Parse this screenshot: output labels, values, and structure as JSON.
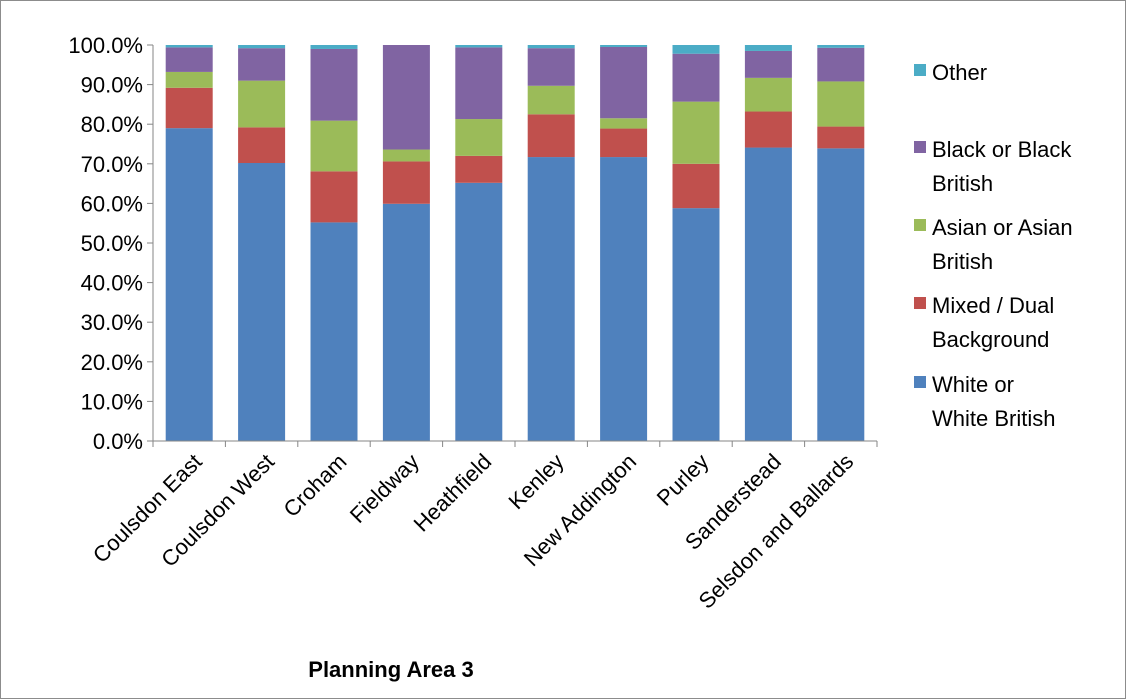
{
  "chart_data": {
    "type": "bar",
    "stacked": true,
    "xlabel": "Planning Area 3",
    "ylabel": "",
    "ylim": [
      0,
      100
    ],
    "y_ticks": [
      0,
      10,
      20,
      30,
      40,
      50,
      60,
      70,
      80,
      90,
      100
    ],
    "y_tick_labels": [
      "0.0%",
      "10.0%",
      "20.0%",
      "30.0%",
      "40.0%",
      "50.0%",
      "60.0%",
      "70.0%",
      "80.0%",
      "90.0%",
      "100.0%"
    ],
    "grid": false,
    "legend_position": "right",
    "categories": [
      "Coulsdon East",
      "Coulsdon West",
      "Croham",
      "Fieldway",
      "Heathfield",
      "Kenley",
      "New Addington",
      "Purley",
      "Sanderstead",
      "Selsdon and Ballards"
    ],
    "series": [
      {
        "name": "White or White British",
        "color": "#4F81BD",
        "values": [
          79.0,
          70.2,
          55.2,
          59.9,
          65.2,
          71.7,
          71.7,
          58.8,
          74.1,
          73.9
        ]
      },
      {
        "name": "Mixed / Dual Background",
        "color": "#C0504D",
        "values": [
          10.2,
          9.0,
          12.9,
          10.7,
          6.8,
          10.8,
          7.2,
          11.2,
          9.1,
          5.5
        ]
      },
      {
        "name": "Asian or Asian British",
        "color": "#9BBB59",
        "values": [
          4.0,
          11.8,
          12.8,
          3.0,
          9.3,
          7.2,
          2.6,
          15.7,
          8.5,
          11.4
        ]
      },
      {
        "name": "Black or Black British",
        "color": "#8064A2",
        "values": [
          6.2,
          8.2,
          18.1,
          26.4,
          18.1,
          9.5,
          18.0,
          12.1,
          6.8,
          8.5
        ]
      },
      {
        "name": "Other",
        "color": "#4BACC6",
        "values": [
          0.6,
          0.8,
          1.0,
          0.0,
          0.6,
          0.8,
          0.5,
          2.2,
          1.5,
          0.7
        ]
      }
    ],
    "legend_order": [
      "Other",
      "Black or Black British",
      "Asian or Asian British",
      "Mixed / Dual Background",
      "White or White British"
    ],
    "legend_lines": [
      [
        "Other"
      ],
      [
        "Black or Black",
        "British"
      ],
      [
        "Asian or Asian",
        "British"
      ],
      [
        "Mixed / Dual",
        "Background"
      ],
      [
        "White or",
        "White British"
      ]
    ]
  }
}
